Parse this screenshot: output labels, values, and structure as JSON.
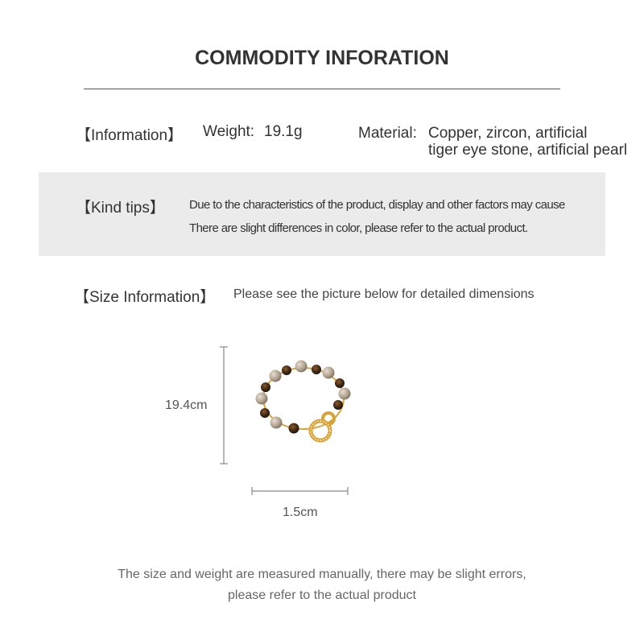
{
  "header": {
    "title": "COMMODITY INFORATION"
  },
  "information": {
    "label": "【Information】",
    "weight_label": "Weight:",
    "weight_value": "19.1g",
    "material_label": "Material:",
    "material_line1": "Copper, zircon, artificial",
    "material_line2": "tiger eye stone, artificial pearl"
  },
  "kind_tips": {
    "label": "【Kind tips】",
    "line1": "Due to the characteristics of the product, display and other factors may cause",
    "line2": "There are slight differences in color, please refer to the actual product."
  },
  "size_information": {
    "label": "【Size Information】",
    "note": "Please see the picture below for detailed dimensions",
    "height_value": "19.4cm",
    "width_value": "1.5cm"
  },
  "footer": {
    "line1": "The size and weight are measured manually, there may be slight errors,",
    "line2": "please refer to the actual product"
  },
  "colors": {
    "band": "#ebebeb",
    "pearl": "#b9aa98",
    "tiger_eye": "#4a2e18",
    "gold": "#d8a43a"
  }
}
